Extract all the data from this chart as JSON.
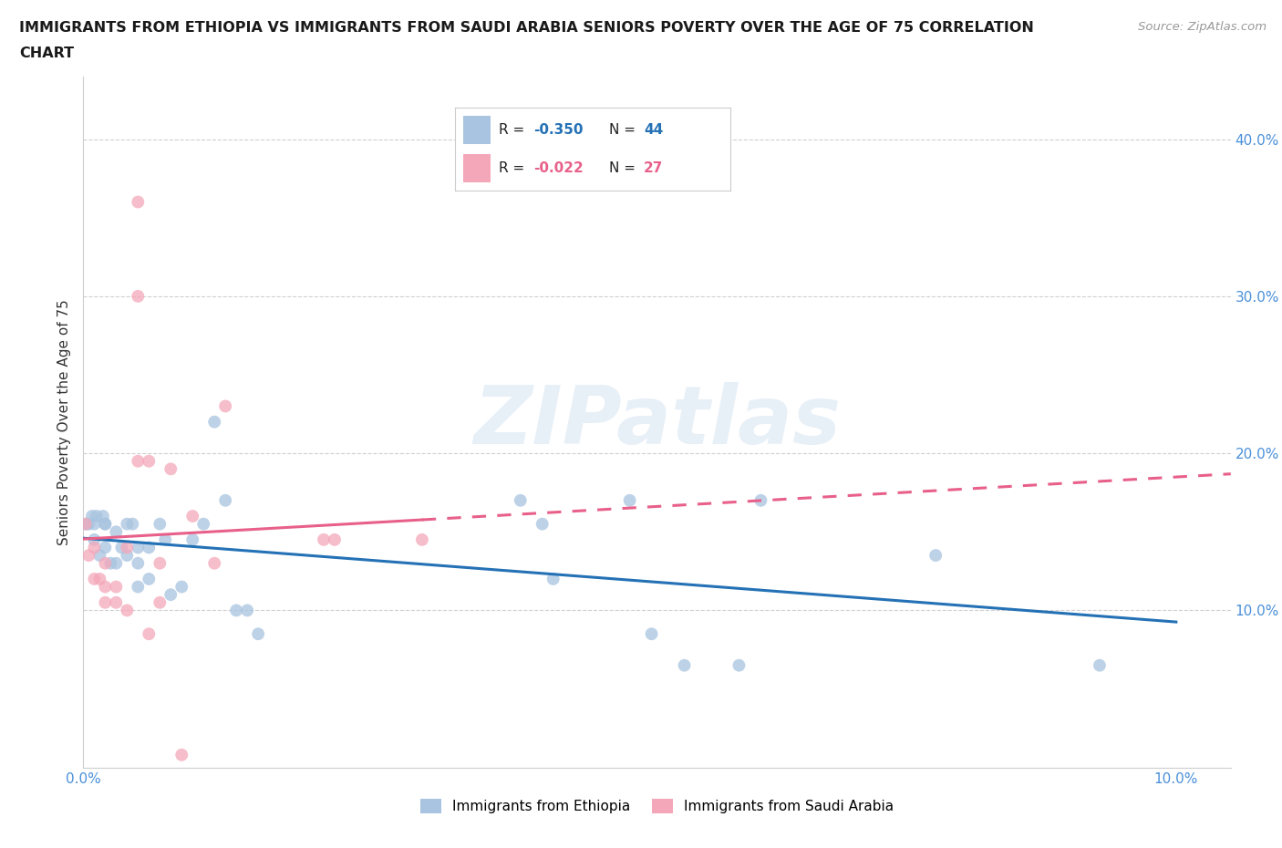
{
  "title_line1": "IMMIGRANTS FROM ETHIOPIA VS IMMIGRANTS FROM SAUDI ARABIA SENIORS POVERTY OVER THE AGE OF 75 CORRELATION",
  "title_line2": "CHART",
  "source": "Source: ZipAtlas.com",
  "ylabel": "Seniors Poverty Over the Age of 75",
  "xlim": [
    0.0,
    0.105
  ],
  "ylim": [
    0.0,
    0.44
  ],
  "xticks": [
    0.0,
    0.02,
    0.04,
    0.06,
    0.08,
    0.1
  ],
  "yticks": [
    0.1,
    0.2,
    0.3,
    0.4
  ],
  "ethiopia_x": [
    0.0003,
    0.0005,
    0.0008,
    0.001,
    0.001,
    0.0012,
    0.0015,
    0.0018,
    0.002,
    0.002,
    0.002,
    0.0025,
    0.003,
    0.003,
    0.0035,
    0.004,
    0.004,
    0.0045,
    0.005,
    0.005,
    0.005,
    0.006,
    0.006,
    0.007,
    0.0075,
    0.008,
    0.009,
    0.01,
    0.011,
    0.012,
    0.013,
    0.014,
    0.015,
    0.016,
    0.04,
    0.042,
    0.043,
    0.05,
    0.052,
    0.055,
    0.06,
    0.062,
    0.078,
    0.093
  ],
  "ethiopia_y": [
    0.155,
    0.155,
    0.16,
    0.155,
    0.145,
    0.16,
    0.135,
    0.16,
    0.155,
    0.14,
    0.155,
    0.13,
    0.15,
    0.13,
    0.14,
    0.155,
    0.135,
    0.155,
    0.13,
    0.115,
    0.14,
    0.14,
    0.12,
    0.155,
    0.145,
    0.11,
    0.115,
    0.145,
    0.155,
    0.22,
    0.17,
    0.1,
    0.1,
    0.085,
    0.17,
    0.155,
    0.12,
    0.17,
    0.085,
    0.065,
    0.065,
    0.17,
    0.135,
    0.065
  ],
  "saudi_x": [
    0.0002,
    0.0005,
    0.001,
    0.001,
    0.0015,
    0.002,
    0.002,
    0.002,
    0.003,
    0.003,
    0.004,
    0.004,
    0.005,
    0.005,
    0.005,
    0.006,
    0.006,
    0.007,
    0.007,
    0.008,
    0.009,
    0.01,
    0.012,
    0.013,
    0.022,
    0.023,
    0.031
  ],
  "saudi_y": [
    0.155,
    0.135,
    0.14,
    0.12,
    0.12,
    0.105,
    0.115,
    0.13,
    0.105,
    0.115,
    0.1,
    0.14,
    0.36,
    0.3,
    0.195,
    0.195,
    0.085,
    0.13,
    0.105,
    0.19,
    0.008,
    0.16,
    0.13,
    0.23,
    0.145,
    0.145,
    0.145
  ],
  "ethiopia_color": "#a8c4e0",
  "saudi_color": "#f4a7b9",
  "ethiopia_line_color": "#2471b5",
  "saudi_line_color": "#e8608a",
  "ethiopia_R": -0.35,
  "ethiopia_N": 44,
  "saudi_R": -0.022,
  "saudi_N": 27,
  "background_color": "#ffffff",
  "grid_color": "#d0d0d0",
  "axis_tick_color": "#4a90d9",
  "label_color": "#333333",
  "watermark": "ZIPatlas",
  "marker_size": 100,
  "marker_alpha": 0.75,
  "line_width": 2.2,
  "eth_line_xstart": 0.0,
  "eth_line_xend": 0.1,
  "sau_line_xstart": 0.0,
  "sau_line_solid_end": 0.031,
  "sau_line_dashed_end": 0.105
}
